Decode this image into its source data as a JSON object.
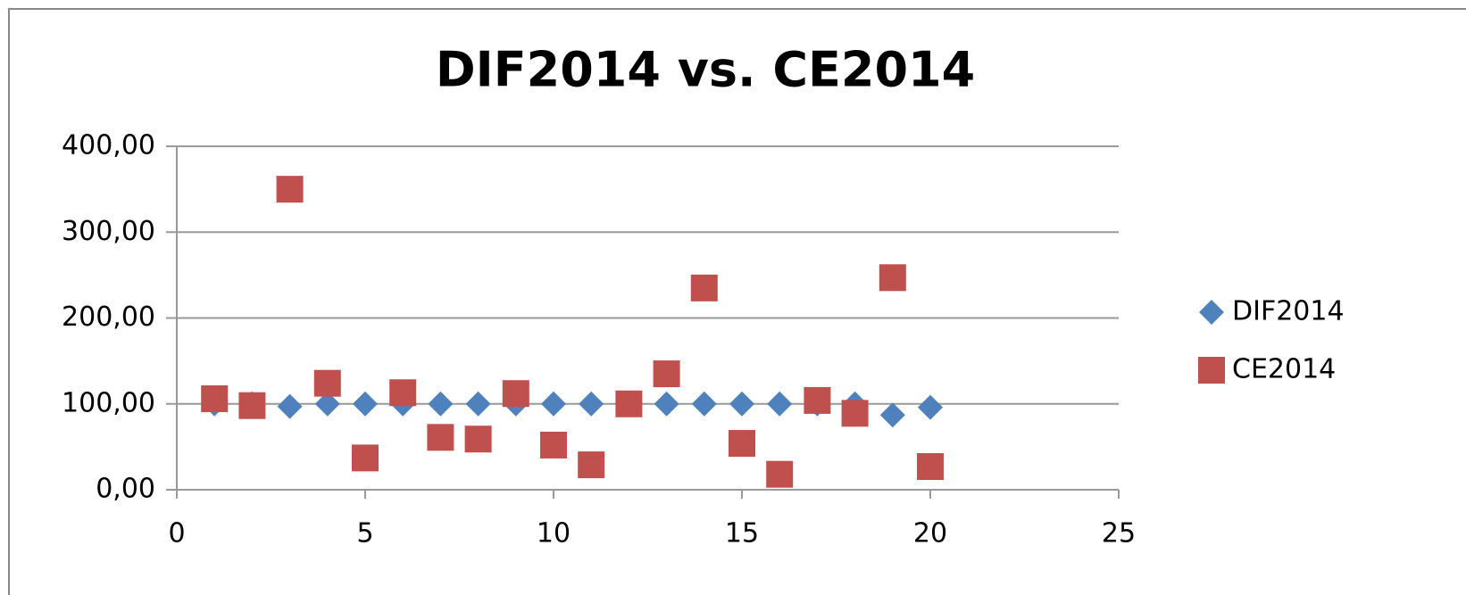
{
  "chart_data": {
    "type": "scatter",
    "title": "DIF2014 vs. CE2014",
    "x": [
      1,
      2,
      3,
      4,
      5,
      6,
      7,
      8,
      9,
      10,
      11,
      12,
      13,
      14,
      15,
      16,
      17,
      18,
      19,
      20
    ],
    "series": [
      {
        "name": "DIF2014",
        "color": "#4f81bd",
        "marker": "diamond",
        "values": [
          100,
          100,
          97,
          100,
          100,
          100,
          100,
          100,
          100,
          100,
          100,
          100,
          100,
          100,
          100,
          100,
          100,
          100,
          87,
          96
        ]
      },
      {
        "name": "CE2014",
        "color": "#c0504d",
        "marker": "square",
        "values": [
          106,
          98,
          350,
          124,
          37,
          113,
          61,
          59,
          112,
          52,
          29,
          100,
          135,
          235,
          54,
          18,
          104,
          89,
          247,
          27
        ]
      }
    ],
    "xlim": [
      0,
      25
    ],
    "xticks": [
      0,
      5,
      10,
      15,
      20,
      25
    ],
    "ylim": [
      0,
      400
    ],
    "yticks": [
      {
        "value": 0,
        "label": "0,00"
      },
      {
        "value": 100,
        "label": "100,00"
      },
      {
        "value": 200,
        "label": "200,00"
      },
      {
        "value": 300,
        "label": "300,00"
      },
      {
        "value": 400,
        "label": "400,00"
      }
    ],
    "grid": true,
    "legend": "right"
  }
}
